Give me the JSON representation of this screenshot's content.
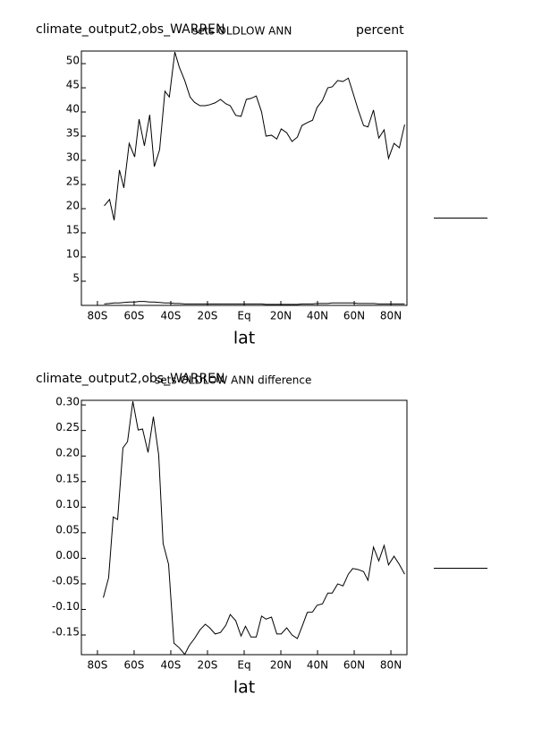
{
  "chart_data": [
    {
      "type": "line",
      "title": "climate_output2,obs_WARREN",
      "subtitle": "sets OLDLOW ANN",
      "units": "percent",
      "x_label": "lat",
      "x": [
        -76.3,
        -73.4,
        -70.9,
        -68.0,
        -65.6,
        -62.7,
        -59.7,
        -57.3,
        -54.4,
        -51.5,
        -49.0,
        -46.1,
        -43.2,
        -40.8,
        -37.8,
        -35.4,
        -32.4,
        -29.5,
        -27.1,
        -24.1,
        -21.2,
        -18.8,
        -15.8,
        -12.9,
        -10.0,
        -7.6,
        -4.6,
        -1.7,
        1.2,
        3.7,
        6.6,
        9.5,
        11.9,
        14.9,
        17.8,
        20.2,
        23.2,
        26.1,
        29.0,
        31.5,
        34.4,
        37.3,
        39.7,
        42.7,
        45.6,
        48.0,
        51.0,
        53.9,
        56.8,
        59.2,
        62.2,
        65.1,
        67.5,
        70.5,
        73.4,
        76.3,
        78.7,
        81.7,
        84.6,
        87.5
      ],
      "series": [
        {
          "color": "#000000",
          "values": [
            20.6,
            21.9,
            17.6,
            28,
            24.3,
            33.5,
            30.7,
            38.5,
            33,
            39.4,
            28.7,
            32.2,
            44.3,
            43.1,
            52.4,
            49.3,
            46.5,
            43.1,
            42,
            41.3,
            41.3,
            41.5,
            41.9,
            42.6,
            41.7,
            41.3,
            39.3,
            39.1,
            42.6,
            42.8,
            43.3,
            40,
            35,
            35.2,
            34.4,
            36.5,
            35.7,
            33.9,
            34.8,
            37.2,
            37.8,
            38.3,
            40.9,
            42.4,
            45,
            45.2,
            46.5,
            46.3,
            47,
            44.1,
            40.4,
            37.2,
            36.9,
            40.4,
            34.6,
            36.3,
            30.4,
            33.5,
            32.6,
            37.4
          ]
        },
        {
          "color": "#000000",
          "values": [
            0.3,
            0.4,
            0.5,
            0.5,
            0.6,
            0.7,
            0.7,
            0.8,
            0.8,
            0.7,
            0.7,
            0.6,
            0.5,
            0.5,
            0.4,
            0.4,
            0.3,
            0.3,
            0.3,
            0.3,
            0.3,
            0.3,
            0.3,
            0.3,
            0.3,
            0.3,
            0.3,
            0.3,
            0.3,
            0.3,
            0.3,
            0.3,
            0.2,
            0.2,
            0.2,
            0.2,
            0.2,
            0.2,
            0.2,
            0.3,
            0.3,
            0.3,
            0.4,
            0.4,
            0.4,
            0.5,
            0.5,
            0.5,
            0.5,
            0.5,
            0.4,
            0.4,
            0.4,
            0.4,
            0.3,
            0.3,
            0.3,
            0.3,
            0.3,
            0.3
          ]
        }
      ],
      "xlim": [
        -88.75,
        88.75
      ],
      "xticks": [
        {
          "value": -80,
          "label": "80S"
        },
        {
          "value": -60,
          "label": "60S"
        },
        {
          "value": -40,
          "label": "40S"
        },
        {
          "value": -20,
          "label": "20S"
        },
        {
          "value": 0,
          "label": "Eq"
        },
        {
          "value": 20,
          "label": "20N"
        },
        {
          "value": 40,
          "label": "40N"
        },
        {
          "value": 60,
          "label": "60N"
        },
        {
          "value": 80,
          "label": "80N"
        }
      ],
      "ylim": [
        0,
        52.6
      ],
      "yticks": [
        5,
        10,
        15,
        20,
        25,
        30,
        35,
        40,
        45,
        50
      ]
    },
    {
      "type": "line",
      "title": "climate_output2,obs_WARREN",
      "subtitle": "sets OLDLOW ANN difference",
      "x_label": "lat",
      "x": [
        -76.8,
        -73.9,
        -71.4,
        -69.0,
        -66.1,
        -63.6,
        -60.7,
        -57.8,
        -55.4,
        -52.4,
        -49.5,
        -46.6,
        -44.2,
        -41.2,
        -38.3,
        -35.4,
        -32.4,
        -30.0,
        -27.1,
        -24.1,
        -21.2,
        -18.8,
        -15.8,
        -12.9,
        -10.0,
        -7.6,
        -4.6,
        -1.7,
        0.7,
        3.7,
        6.6,
        9.5,
        11.9,
        14.9,
        17.8,
        20.2,
        23.2,
        26.1,
        29.0,
        31.5,
        34.4,
        37.3,
        39.7,
        42.7,
        45.6,
        48.0,
        51.0,
        53.9,
        56.8,
        59.2,
        62.2,
        65.1,
        67.5,
        70.5,
        73.4,
        76.3,
        78.7,
        81.7,
        84.6,
        87.5
      ],
      "series": [
        {
          "color": "#000000",
          "values": [
            -0.077,
            -0.038,
            0.081,
            0.076,
            0.216,
            0.228,
            0.307,
            0.251,
            0.253,
            0.207,
            0.277,
            0.202,
            0.029,
            -0.012,
            -0.166,
            -0.175,
            -0.188,
            -0.171,
            -0.157,
            -0.14,
            -0.129,
            -0.136,
            -0.148,
            -0.145,
            -0.131,
            -0.11,
            -0.122,
            -0.152,
            -0.133,
            -0.154,
            -0.154,
            -0.113,
            -0.119,
            -0.115,
            -0.148,
            -0.148,
            -0.136,
            -0.15,
            -0.157,
            -0.134,
            -0.106,
            -0.105,
            -0.092,
            -0.089,
            -0.068,
            -0.068,
            -0.05,
            -0.054,
            -0.031,
            -0.02,
            -0.022,
            -0.026,
            -0.043,
            0.022,
            -0.005,
            0.025,
            -0.013,
            0.004,
            -0.012,
            -0.031
          ]
        }
      ],
      "xlim": [
        -88.75,
        88.75
      ],
      "xticks": [
        {
          "value": -80,
          "label": "80S"
        },
        {
          "value": -60,
          "label": "60S"
        },
        {
          "value": -40,
          "label": "40S"
        },
        {
          "value": -20,
          "label": "20S"
        },
        {
          "value": 0,
          "label": "Eq"
        },
        {
          "value": 20,
          "label": "20N"
        },
        {
          "value": 40,
          "label": "40N"
        },
        {
          "value": 60,
          "label": "60N"
        },
        {
          "value": 80,
          "label": "80N"
        }
      ],
      "ylim": [
        -0.1885,
        0.309
      ],
      "yticks": [
        {
          "value": 0.3,
          "label": "0.30"
        },
        {
          "value": 0.25,
          "label": "0.25"
        },
        {
          "value": 0.2,
          "label": "0.20"
        },
        {
          "value": 0.15,
          "label": "0.15"
        },
        {
          "value": 0.1,
          "label": "0.10"
        },
        {
          "value": 0.05,
          "label": "0.05"
        },
        {
          "value": 0,
          "label": "0.00"
        },
        {
          "value": -0.05,
          "label": "-0.05"
        },
        {
          "value": -0.1,
          "label": "-0.10"
        },
        {
          "value": -0.15,
          "label": "-0.15"
        }
      ]
    }
  ]
}
